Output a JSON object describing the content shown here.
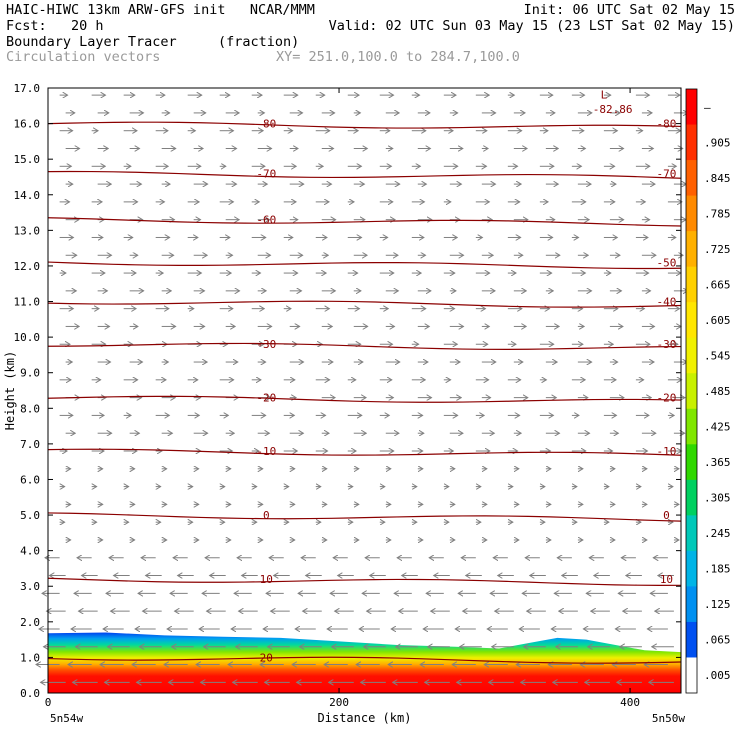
{
  "header": {
    "title_left": "HAIC-HIWC 13km ARW-GFS init   NCAR/MMM",
    "init": "Init: 06 UTC Sat 02 May 15",
    "fcst_label": "Fcst:   20 h",
    "valid": "Valid: 02 UTC Sun 03 May 15 (23 LST Sat 02 May 15)",
    "field_name": "Boundary Layer Tracer",
    "field_units": "(fraction)",
    "vector_name": "Circulation vectors",
    "xy": "XY= 251.0,100.0 to 284.7,100.0"
  },
  "chart_data": {
    "type": "heatmap",
    "xlabel": "Distance (km)",
    "ylabel": "Height (km)",
    "xlim": [
      0,
      435
    ],
    "ylim": [
      0,
      17
    ],
    "x_ticks": [
      "0",
      "200",
      "400"
    ],
    "x_tick_values": [
      0,
      200,
      400
    ],
    "x_end_labels": [
      "5n54w",
      "5n50w"
    ],
    "y_ticks": [
      "0.0",
      "1.0",
      "2.0",
      "3.0",
      "4.0",
      "5.0",
      "6.0",
      "7.0",
      "8.0",
      "9.0",
      "10.0",
      "11.0",
      "12.0",
      "13.0",
      "14.0",
      "15.0",
      "16.0",
      "17.0"
    ],
    "colorbar_labels": [
      "–",
      ".905",
      ".845",
      ".785",
      ".725",
      ".665",
      ".605",
      ".545",
      ".485",
      ".425",
      ".365",
      ".305",
      ".245",
      ".185",
      ".125",
      ".065",
      ".005"
    ],
    "colorbar_colors": [
      "#ff0000",
      "#ff3000",
      "#ff6000",
      "#ff8a00",
      "#ffb000",
      "#ffd000",
      "#ffe600",
      "#f0f000",
      "#c8f000",
      "#80e600",
      "#30d800",
      "#00d060",
      "#00c8b8",
      "#00b4e6",
      "#0090f0",
      "#0050f0",
      "#ffffff"
    ],
    "contour_levels": [
      {
        "level": "-80",
        "height_km": 16.0
      },
      {
        "level": "-70",
        "height_km": 14.6
      },
      {
        "level": "-60",
        "height_km": 13.3
      },
      {
        "level": "-50",
        "height_km": 12.1
      },
      {
        "level": "-40",
        "height_km": 11.0
      },
      {
        "level": "-30",
        "height_km": 9.8
      },
      {
        "level": "-20",
        "height_km": 8.3
      },
      {
        "level": "-10",
        "height_km": 6.8
      },
      {
        "level": "0",
        "height_km": 5.0
      },
      {
        "level": "10",
        "height_km": 3.2
      },
      {
        "level": "20",
        "height_km": 1.0
      }
    ],
    "contour_labels_left": [
      "-80",
      "-70",
      "-60",
      "-30",
      "-20",
      "-10",
      "0",
      "10",
      "20"
    ],
    "contour_labels_right": [
      "-80",
      "-70",
      "-50",
      "-40",
      "-30",
      "-20",
      "-10",
      "0",
      "10"
    ],
    "low_label": "L",
    "low_value": "-82.86",
    "tracer_top_km": [
      [
        0,
        1.68
      ],
      [
        40,
        1.7
      ],
      [
        80,
        1.62
      ],
      [
        120,
        1.58
      ],
      [
        160,
        1.55
      ],
      [
        200,
        1.45
      ],
      [
        240,
        1.35
      ],
      [
        280,
        1.3
      ],
      [
        310,
        1.25
      ],
      [
        330,
        1.4
      ],
      [
        350,
        1.55
      ],
      [
        370,
        1.5
      ],
      [
        390,
        1.35
      ],
      [
        410,
        1.2
      ],
      [
        435,
        1.15
      ]
    ]
  }
}
